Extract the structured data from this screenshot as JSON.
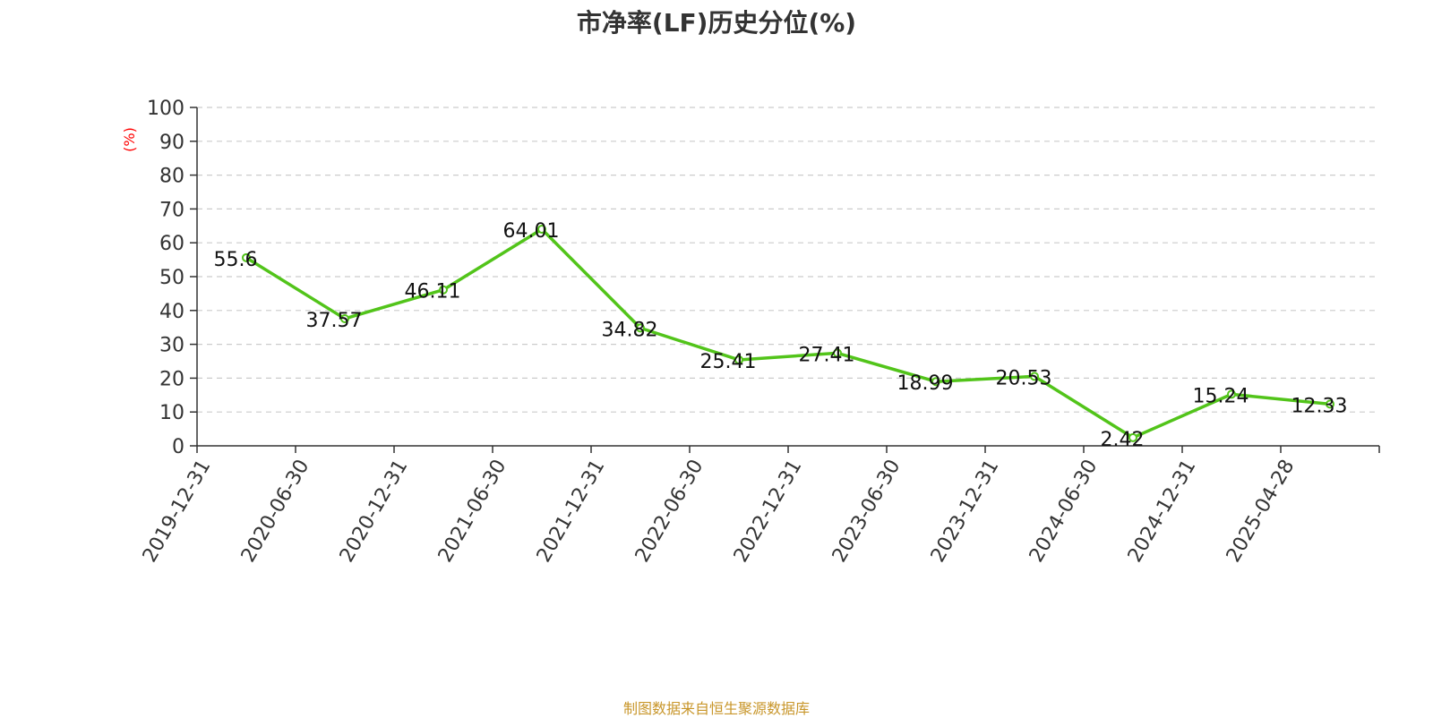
{
  "chart_data": {
    "type": "line",
    "title": "市净率(LF)历史分位(%)",
    "ylabel": "(%)",
    "xlabel": "",
    "ylim": [
      0,
      100
    ],
    "yticks": [
      0,
      10,
      20,
      30,
      40,
      50,
      60,
      70,
      80,
      90,
      100
    ],
    "grid": true,
    "categories": [
      "2019-12-31",
      "2020-06-30",
      "2020-12-31",
      "2021-06-30",
      "2021-12-31",
      "2022-06-30",
      "2022-12-31",
      "2023-06-30",
      "2023-12-31",
      "2024-06-30",
      "2024-12-31",
      "2025-04-28"
    ],
    "series": [
      {
        "values": [
          55.6,
          37.57,
          46.11,
          64.01,
          34.82,
          25.41,
          27.41,
          18.99,
          20.53,
          2.42,
          15.24,
          12.33
        ]
      }
    ]
  },
  "source_note": "制图数据来自恒生聚源数据库",
  "colors": {
    "line": "#52c41a",
    "grid": "#cccccc",
    "axis": "#333333",
    "ylabel": "#ff0000",
    "source": "#c8962a",
    "title": "#333333"
  }
}
